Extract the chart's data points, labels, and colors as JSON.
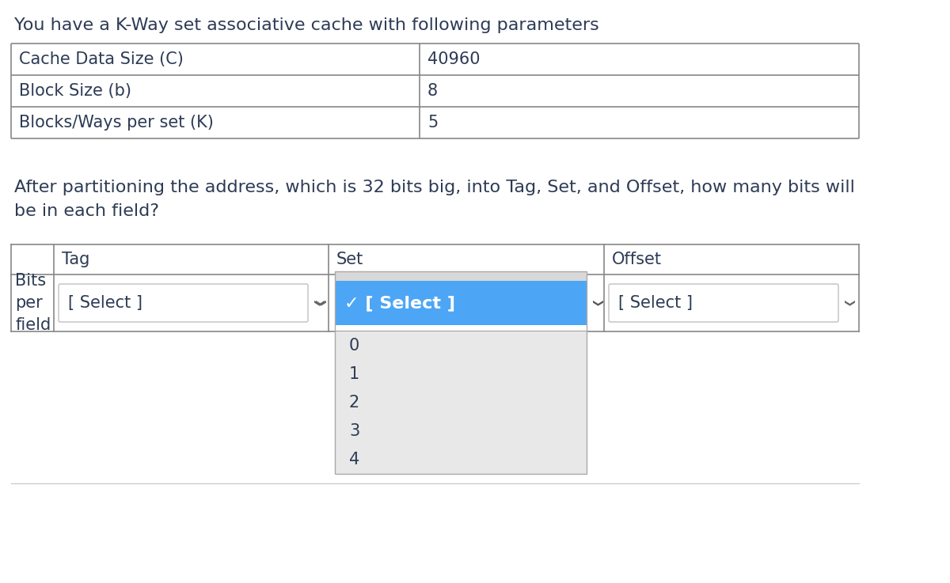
{
  "title": "You have a K-Way set associative cache with following parameters",
  "param_table": {
    "rows": [
      [
        "Cache Data Size (C)",
        "40960"
      ],
      [
        "Block Size (b)",
        "8"
      ],
      [
        "Blocks/Ways per set (K)",
        "5"
      ]
    ]
  },
  "question_text_line1": "After partitioning the address, which is 32 bits big, into Tag, Set, and Offset, how many bits will",
  "question_text_line2": "be in each field?",
  "second_table": {
    "col_headers": [
      "",
      "Tag",
      "Set",
      "Offset"
    ],
    "row_label": "Bits\nper\nfield",
    "tag_cell": "[ Select ]",
    "set_cell_selected": "✓ [ Select ]",
    "offset_cell": "[ Select ]",
    "dropdown_items": [
      "0",
      "1",
      "2",
      "3",
      "4"
    ]
  },
  "bg_color": "#ffffff",
  "text_color": "#2d3b55",
  "dropdown_selected_bg": "#4da6f5",
  "dropdown_list_bg": "#e8e8e8",
  "table_border_color": "#888888",
  "select_box_border": "#bbbbbb",
  "font_size_title": 16,
  "font_size_table": 15,
  "font_size_question": 16,
  "font_size_dropdown": 15
}
